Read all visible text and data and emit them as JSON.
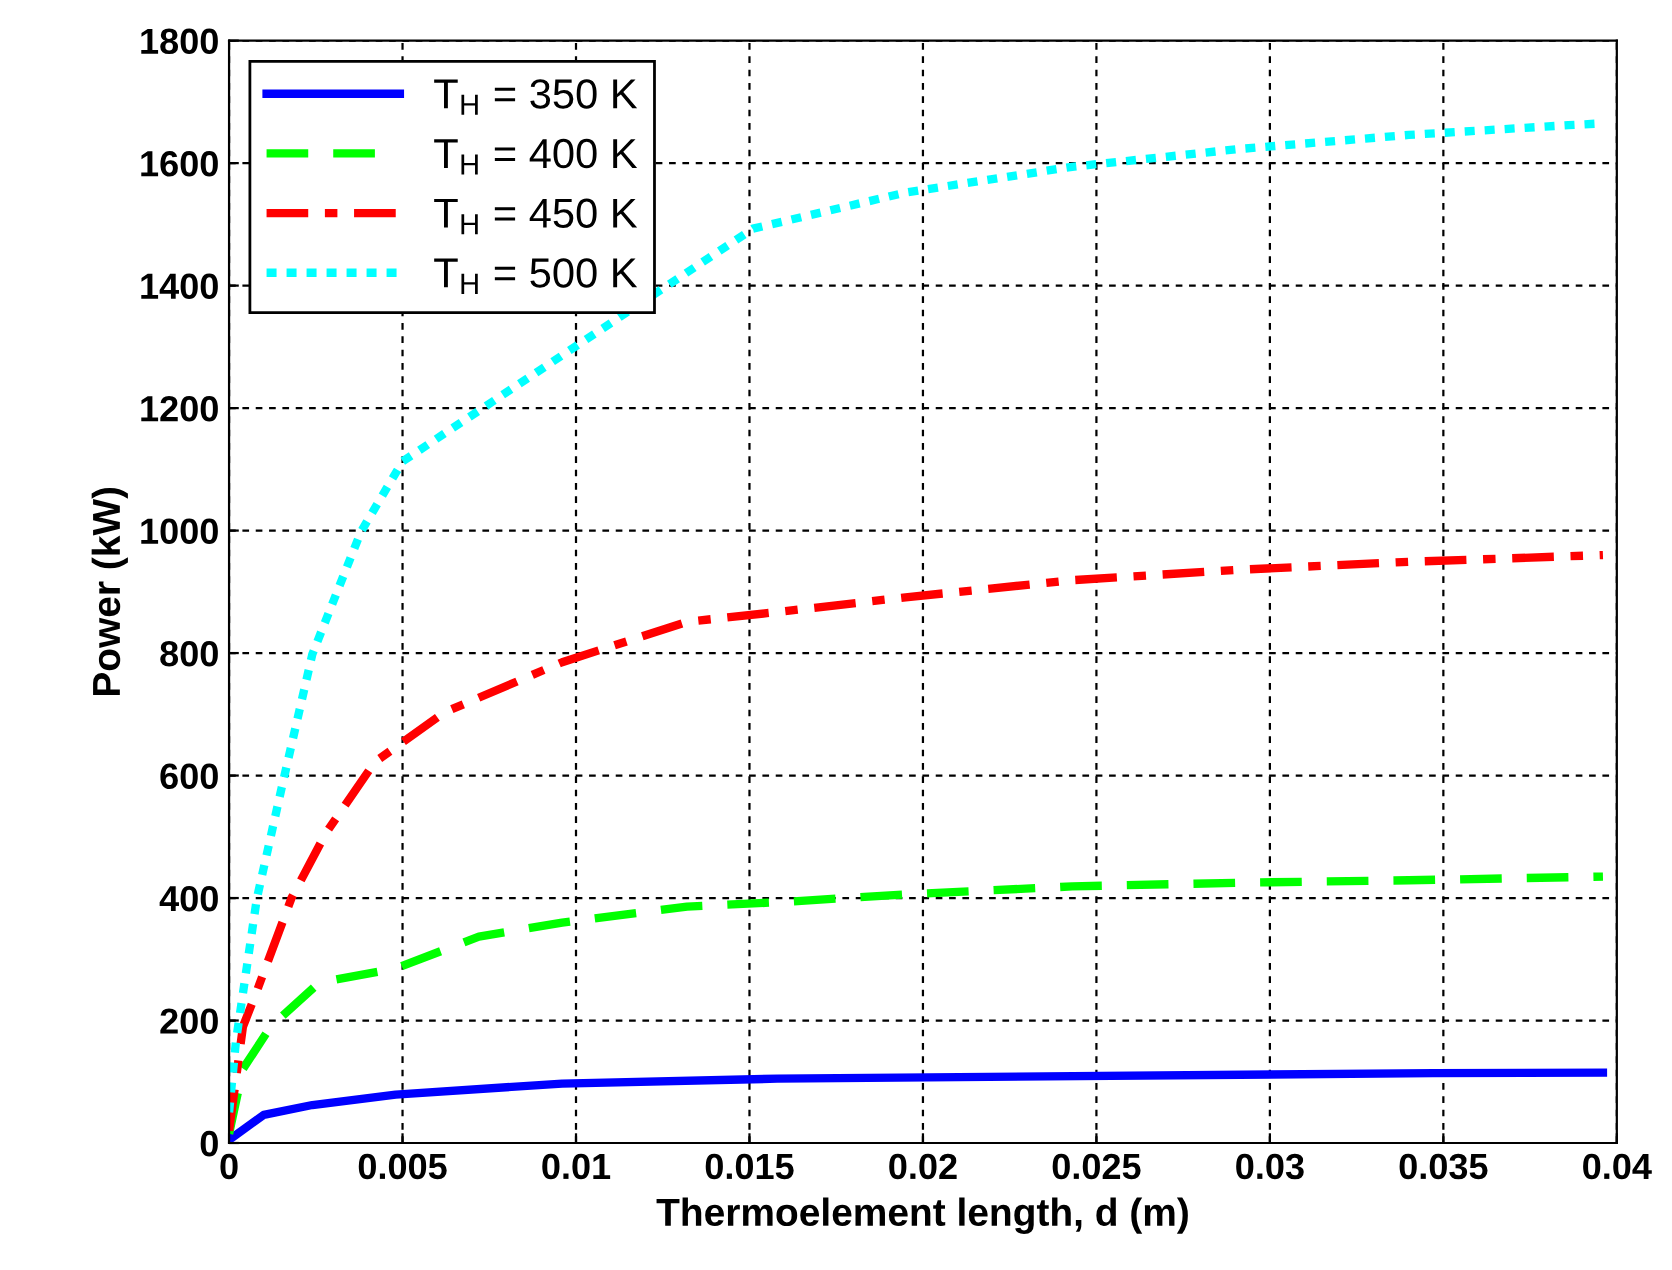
{
  "chart_data": {
    "type": "line",
    "xlabel": "Thermoelement length, d (m)",
    "ylabel": "Power (kW)",
    "xlim": [
      0,
      0.04
    ],
    "xticks": [
      0,
      0.005,
      0.01,
      0.015,
      0.02,
      0.025,
      0.03,
      0.035,
      0.04
    ],
    "ylim": [
      0,
      1800
    ],
    "yticks": [
      0,
      200,
      400,
      600,
      800,
      1000,
      1200,
      1400,
      1600,
      1800
    ],
    "grid": true,
    "legend": "top left",
    "marker": "none",
    "series": [
      {
        "name": "T$_{H}$ = 350 K",
        "color": "#0000ff",
        "line_style": "solid",
        "x": [
          0,
          0.001,
          0.0024,
          0.0048,
          0.0096,
          0.0158,
          0.0219,
          0.0347,
          0.0396
        ],
        "values": [
          5,
          46,
          62,
          79,
          97,
          105,
          108,
          114,
          115
        ]
      },
      {
        "name": "T$_{H}$ = 400 K",
        "color": "#00ff00",
        "line_style": "dashed",
        "x": [
          0,
          0.0004,
          0.0012,
          0.0026,
          0.0048,
          0.0072,
          0.0096,
          0.0132,
          0.0158,
          0.0195,
          0.0243,
          0.0291,
          0.034,
          0.0396
        ],
        "values": [
          15,
          121,
          190,
          262,
          285,
          337,
          360,
          386,
          393,
          406,
          419,
          425,
          429,
          435
        ]
      },
      {
        "name": "T$_{H}$ = 450 K",
        "color": "#ff0000",
        "line_style": "dashdot",
        "x": [
          0,
          0.0004,
          0.0008,
          0.0018,
          0.0028,
          0.0042,
          0.0062,
          0.0096,
          0.0132,
          0.0158,
          0.0195,
          0.0243,
          0.0291,
          0.034,
          0.0396
        ],
        "values": [
          20,
          190,
          248,
          400,
          507,
          622,
          703,
          785,
          851,
          867,
          891,
          919,
          936,
          949,
          960
        ]
      },
      {
        "name": "T$_{H}$ = 500 K",
        "color": "#00ffff",
        "line_style": "dotted",
        "x": [
          0,
          0.0002,
          0.0008,
          0.0015,
          0.0024,
          0.0038,
          0.005,
          0.0151,
          0.0195,
          0.0243,
          0.0291,
          0.034,
          0.0386,
          0.0396
        ],
        "values": [
          50,
          167,
          399,
          576,
          798,
          998,
          1113,
          1493,
          1552,
          1594,
          1623,
          1646,
          1662,
          1665
        ]
      }
    ]
  }
}
